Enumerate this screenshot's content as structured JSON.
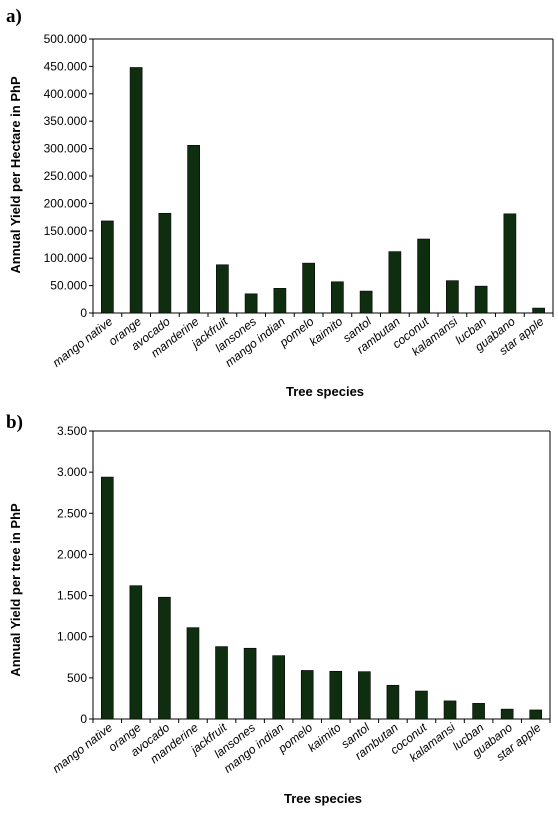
{
  "chart_data": [
    {
      "type": "bar",
      "panel_label": "a)",
      "categories": [
        "mango native",
        "orange",
        "avocado",
        "manderine",
        "jackfruit",
        "lansones",
        "mango indian",
        "pomelo",
        "kaimito",
        "santol",
        "rambutan",
        "coconut",
        "kalamansi",
        "lucban",
        "guabano",
        "star apple"
      ],
      "values": [
        168000,
        448000,
        182000,
        306000,
        88000,
        35000,
        45000,
        91000,
        57000,
        40000,
        112000,
        135000,
        59000,
        49000,
        181000,
        9000
      ],
      "xlabel": "Tree species",
      "ylabel": "Annual Yield per Hectare in PhP",
      "ylim": [
        0,
        500000
      ],
      "yticks": [
        0,
        50000,
        100000,
        150000,
        200000,
        250000,
        300000,
        350000,
        400000,
        450000,
        500000
      ],
      "ytick_labels": [
        "0",
        "50.000",
        "100.000",
        "150.000",
        "200.000",
        "250.000",
        "300.000",
        "350.000",
        "400.000",
        "450.000",
        "500.000"
      ],
      "bar_color": "#0f2e0f",
      "grid": false
    },
    {
      "type": "bar",
      "panel_label": "b)",
      "categories": [
        "mango native",
        "orange",
        "avocado",
        "manderine",
        "jackfruit",
        "lansones",
        "mango indian",
        "pomelo",
        "kaimito",
        "santol",
        "rambutan",
        "coconut",
        "kalamansi",
        "lucban",
        "guabano",
        "star apple"
      ],
      "values": [
        2940,
        1620,
        1480,
        1110,
        880,
        860,
        770,
        590,
        580,
        575,
        410,
        340,
        220,
        190,
        120,
        110
      ],
      "xlabel": "Tree species",
      "ylabel": "Annual Yield per tree in PhP",
      "ylim": [
        0,
        3500
      ],
      "yticks": [
        0,
        500,
        1000,
        1500,
        2000,
        2500,
        3000,
        3500
      ],
      "ytick_labels": [
        "0",
        "500",
        "1.000",
        "1.500",
        "2.000",
        "2.500",
        "3.000",
        "3.500"
      ],
      "bar_color": "#0f2e0f",
      "grid": false
    }
  ]
}
